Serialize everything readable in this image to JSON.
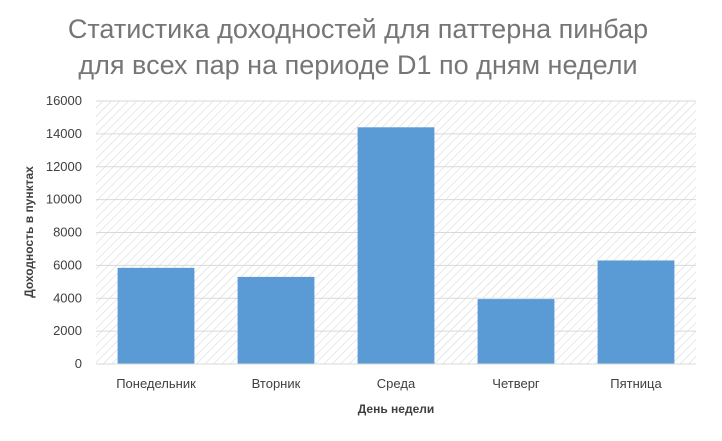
{
  "chart_data": {
    "type": "bar",
    "title": [
      "Статистика доходностей для паттерна пинбар",
      "для всех пар на периоде D1 по дням недели"
    ],
    "categories": [
      "Понедельник",
      "Вторник",
      "Среда",
      "Четверг",
      "Пятница"
    ],
    "values": [
      5850,
      5300,
      14400,
      3950,
      6300
    ],
    "xlabel": "День недели",
    "ylabel": "Доходность в пунктах",
    "ylim": [
      0,
      16000
    ],
    "yticks": [
      0,
      2000,
      4000,
      6000,
      8000,
      10000,
      12000,
      14000,
      16000
    ],
    "grid": true,
    "legend": "none",
    "colors": {
      "bar": "#5b9bd5",
      "grid": "#d9d9d9",
      "hatch": "#d0d0d0",
      "title": "#767676"
    }
  }
}
